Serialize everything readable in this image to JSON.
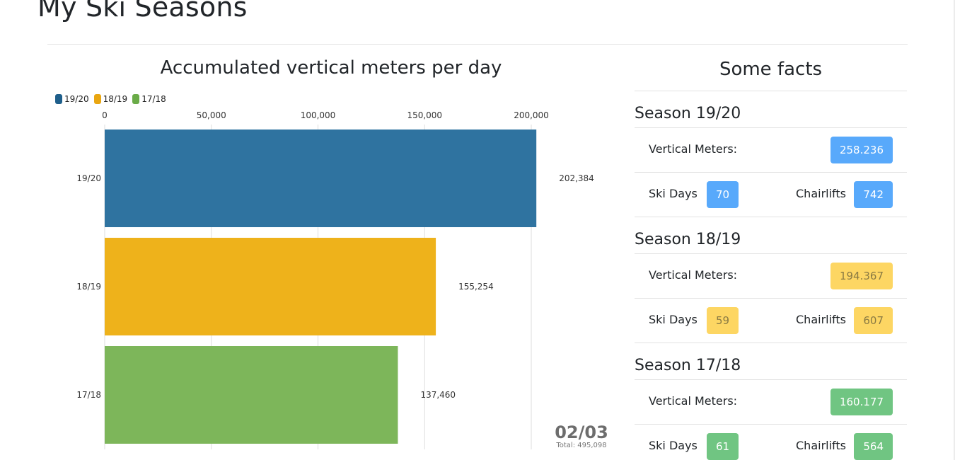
{
  "page": {
    "title": "My Ski Seasons"
  },
  "chart": {
    "title": "Accumulated vertical meters per day",
    "date_label": "02/03",
    "total_label": "Total: 495,098"
  },
  "chart_data": {
    "type": "bar",
    "orientation": "horizontal",
    "title": "Accumulated vertical meters per day",
    "categories": [
      "19/20",
      "18/19",
      "17/18"
    ],
    "values": [
      202384,
      155254,
      137460
    ],
    "value_labels": [
      "202,384",
      "155,254",
      "137,460"
    ],
    "colors": [
      "#2f73a0",
      "#eeb21b",
      "#7db65a"
    ],
    "xlim": [
      0,
      210000
    ],
    "ticks": [
      0,
      50000,
      100000,
      150000,
      200000
    ],
    "tick_labels": [
      "0",
      "50,000",
      "100,000",
      "150,000",
      "200,000"
    ],
    "axis_position": "top",
    "grid": true,
    "legend": {
      "position": "top-left",
      "entries": [
        {
          "label": "19/20",
          "color": "#1f5f8b"
        },
        {
          "label": "18/19",
          "color": "#e9a611"
        },
        {
          "label": "17/18",
          "color": "#6aab48"
        }
      ]
    }
  },
  "facts": {
    "title": "Some facts",
    "seasons": [
      {
        "heading": "Season 19/20",
        "vertical_label": "Vertical Meters:",
        "vertical_value": "258.236",
        "days_label": "Ski Days",
        "days_value": "70",
        "lifts_label": "Chairlifts",
        "lifts_value": "742",
        "badge_color": "#58a9fb"
      },
      {
        "heading": "Season 18/19",
        "vertical_label": "Vertical Meters:",
        "vertical_value": "194.367",
        "days_label": "Ski Days",
        "days_value": "59",
        "lifts_label": "Chairlifts",
        "lifts_value": "607",
        "badge_color": "#fdd663"
      },
      {
        "heading": "Season 17/18",
        "vertical_label": "Vertical Meters:",
        "vertical_value": "160.177",
        "days_label": "Ski Days",
        "days_value": "61",
        "lifts_label": "Chairlifts",
        "lifts_value": "564",
        "badge_color": "#70c582"
      }
    ]
  }
}
